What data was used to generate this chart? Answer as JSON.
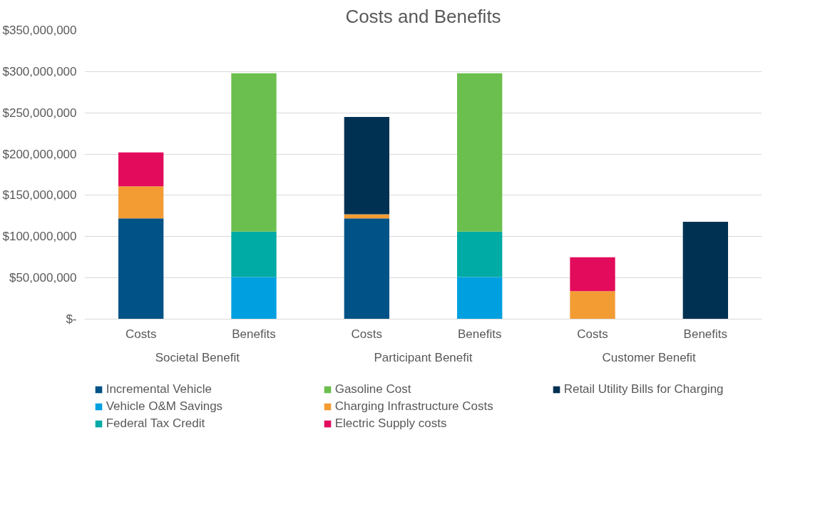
{
  "chart_data": {
    "type": "bar",
    "title": "Costs and Benefits",
    "stacked": true,
    "categories": [
      "Costs",
      "Benefits",
      "Costs",
      "Benefits",
      "Costs",
      "Benefits"
    ],
    "annotations": [
      "Societal Benefit",
      "Participant Benefit",
      "Customer Benefit"
    ],
    "series": [
      {
        "name": "Incremental Vehicle",
        "color": "#005287",
        "values": [
          122000000,
          null,
          122000000,
          null,
          null,
          null
        ]
      },
      {
        "name": "Vehicle O&M Savings",
        "color": "#00a0e0",
        "values": [
          null,
          51000000,
          null,
          51000000,
          null,
          null
        ]
      },
      {
        "name": "Federal Tax Credit",
        "color": "#00aaa5",
        "values": [
          null,
          55000000,
          null,
          55000000,
          null,
          null
        ]
      },
      {
        "name": "Gasoline Cost",
        "color": "#6bbf4e",
        "values": [
          null,
          192000000,
          null,
          192000000,
          null,
          null
        ]
      },
      {
        "name": "Charging Infrastructure Costs",
        "color": "#f39c34",
        "values": [
          39000000,
          null,
          5000000,
          null,
          34000000,
          null
        ]
      },
      {
        "name": "Electric Supply costs",
        "color": "#e30b5c",
        "values": [
          41000000,
          null,
          null,
          null,
          41000000,
          null
        ]
      },
      {
        "name": "Retail Utility Bills for Charging",
        "color": "#003152",
        "values": [
          null,
          null,
          118000000,
          null,
          null,
          118000000
        ]
      }
    ],
    "ylim": [
      0,
      350000000
    ],
    "yticks": [
      {
        "value": 0,
        "label": "$-"
      },
      {
        "value": 50000000,
        "label": "$50,000,000"
      },
      {
        "value": 100000000,
        "label": "$100,000,000"
      },
      {
        "value": 150000000,
        "label": "$150,000,000"
      },
      {
        "value": 200000000,
        "label": "$200,000,000"
      },
      {
        "value": 250000000,
        "label": "$250,000,000"
      },
      {
        "value": 300000000,
        "label": "$300,000,000"
      },
      {
        "value": 350000000,
        "label": "$350,000,000"
      }
    ],
    "grid": "y",
    "legend": "bottom"
  }
}
